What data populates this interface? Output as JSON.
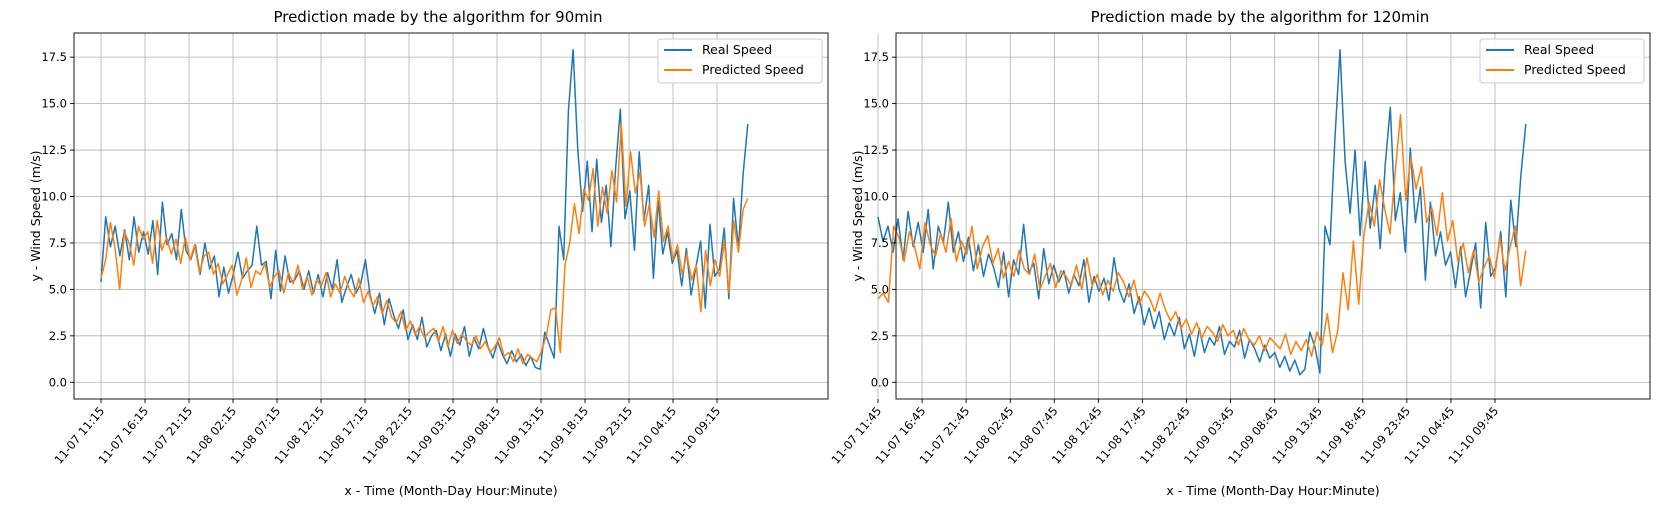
{
  "colors": {
    "real": "#1f77b4",
    "predicted": "#ff7f0e"
  },
  "chart_data": [
    {
      "type": "line",
      "title": "Prediction made by the algorithm for 90min",
      "xlabel": "x - Time (Month-Day Hour:Minute)",
      "ylabel": "y - Wind Speed (m/s)",
      "ylim": [
        -0.9,
        18.8
      ],
      "yticks": [
        "0.0",
        "2.5",
        "5.0",
        "7.5",
        "10.0",
        "12.5",
        "15.0",
        "17.5"
      ],
      "xticklabels": [
        "11-07 11:15",
        "11-07 16:15",
        "11-07 21:15",
        "11-08 02:15",
        "11-08 07:15",
        "11-08 12:15",
        "11-08 17:15",
        "11-08 22:15",
        "11-09 03:15",
        "11-09 08:15",
        "11-09 13:15",
        "11-09 18:15",
        "11-09 23:15",
        "11-10 04:15",
        "11-10 09:15"
      ],
      "legend": [
        "Real Speed",
        "Predicted Speed"
      ],
      "legend_loc": "upper right",
      "series": [
        {
          "name": "Real Speed",
          "values": [
            5.4,
            8.9,
            7.3,
            8.4,
            6.8,
            8.2,
            6.6,
            8.9,
            7.0,
            8.1,
            6.9,
            8.7,
            5.8,
            9.7,
            7.4,
            8.0,
            6.6,
            9.3,
            7.1,
            6.6,
            7.4,
            5.8,
            7.5,
            6.1,
            6.8,
            4.6,
            6.2,
            4.8,
            5.8,
            7.0,
            5.6,
            6.0,
            6.3,
            8.4,
            6.3,
            6.5,
            4.5,
            7.1,
            4.9,
            6.8,
            5.4,
            5.5,
            6.0,
            5.0,
            6.0,
            4.8,
            5.8,
            4.6,
            5.9,
            5.0,
            6.6,
            4.3,
            5.1,
            5.8,
            4.8,
            5.3,
            6.6,
            4.7,
            3.7,
            4.8,
            3.1,
            4.5,
            3.6,
            2.9,
            3.9,
            2.3,
            3.1,
            2.3,
            3.5,
            1.9,
            2.5,
            2.8,
            1.7,
            2.6,
            1.4,
            2.6,
            2.0,
            3.0,
            1.4,
            2.4,
            1.8,
            2.9,
            1.9,
            1.3,
            2.2,
            1.5,
            1.0,
            1.7,
            1.1,
            1.5,
            0.9,
            1.4,
            0.8,
            0.7,
            2.7,
            2.0,
            1.3,
            8.4,
            6.6,
            14.6,
            17.9,
            12.5,
            9.2,
            11.9,
            8.1,
            12.0,
            8.6,
            10.6,
            7.3,
            11.5,
            14.7,
            8.8,
            10.3,
            7.1,
            12.4,
            8.7,
            10.6,
            5.6,
            9.8,
            6.9,
            8.1,
            6.4,
            7.1,
            5.2,
            7.2,
            4.7,
            6.2,
            7.6,
            4.0,
            8.5,
            5.7,
            6.1,
            8.3,
            4.5,
            9.9,
            7.2,
            11.2,
            13.9
          ]
        },
        {
          "name": "Predicted Speed",
          "values": [
            5.6,
            6.6,
            8.6,
            7.2,
            5.0,
            8.1,
            7.5,
            6.3,
            8.4,
            7.7,
            8.1,
            6.4,
            8.7,
            7.1,
            7.8,
            6.9,
            7.7,
            6.4,
            7.8,
            6.6,
            7.4,
            5.9,
            6.8,
            7.0,
            5.8,
            6.4,
            5.3,
            5.8,
            6.3,
            4.7,
            5.5,
            6.7,
            5.1,
            6.0,
            5.8,
            6.4,
            5.1,
            5.7,
            6.0,
            4.8,
            5.9,
            5.3,
            6.3,
            5.0,
            5.7,
            4.7,
            5.5,
            5.2,
            5.9,
            4.6,
            5.3,
            4.8,
            5.7,
            5.0,
            4.6,
            5.6,
            4.3,
            4.9,
            4.1,
            4.6,
            3.7,
            4.4,
            3.5,
            3.2,
            3.8,
            2.8,
            3.3,
            2.6,
            3.0,
            2.4,
            2.7,
            2.9,
            2.2,
            3.0,
            1.9,
            2.8,
            2.1,
            2.6,
            2.2,
            2.0,
            2.5,
            1.8,
            2.2,
            1.6,
            1.9,
            2.4,
            1.4,
            1.6,
            1.1,
            1.8,
            1.0,
            1.5,
            1.3,
            1.1,
            1.7,
            2.5,
            3.9,
            4.0,
            1.6,
            6.3,
            7.5,
            9.6,
            8.0,
            10.4,
            9.8,
            11.5,
            8.4,
            10.5,
            9.1,
            11.4,
            9.7,
            13.9,
            9.5,
            12.4,
            10.2,
            11.3,
            8.4,
            9.6,
            7.8,
            10.3,
            7.6,
            8.4,
            6.6,
            7.4,
            5.8,
            6.9,
            5.5,
            6.3,
            3.8,
            7.1,
            5.2,
            6.6,
            5.7,
            7.6,
            4.8,
            8.7,
            7.0,
            9.3,
            9.9
          ]
        }
      ]
    },
    {
      "type": "line",
      "title": "Prediction made by the algorithm for 120min",
      "xlabel": "x - Time (Month-Day Hour:Minute)",
      "ylabel": "y - Wind Speed (m/s)",
      "ylim": [
        -0.9,
        18.8
      ],
      "yticks": [
        "0.0",
        "2.5",
        "5.0",
        "7.5",
        "10.0",
        "12.5",
        "15.0",
        "17.5"
      ],
      "xticklabels": [
        "11-07 11:45",
        "11-07 16:45",
        "11-07 21:45",
        "11-08 02:45",
        "11-08 07:45",
        "11-08 12:45",
        "11-08 17:45",
        "11-08 22:45",
        "11-09 03:45",
        "11-09 08:45",
        "11-09 13:45",
        "11-09 18:45",
        "11-09 23:45",
        "11-10 04:45",
        "11-10 09:45"
      ],
      "legend": [
        "Real Speed",
        "Predicted Speed"
      ],
      "legend_loc": "upper right",
      "series": [
        {
          "name": "Real Speed",
          "values": [
            8.9,
            7.6,
            8.4,
            7.0,
            8.8,
            6.6,
            9.2,
            7.3,
            8.6,
            7.0,
            9.3,
            6.1,
            8.4,
            7.5,
            9.7,
            7.0,
            8.1,
            6.5,
            7.8,
            6.0,
            7.4,
            5.7,
            6.9,
            6.2,
            5.1,
            7.0,
            4.6,
            6.6,
            5.8,
            8.5,
            5.9,
            6.4,
            4.5,
            7.2,
            5.3,
            6.3,
            5.4,
            6.0,
            4.8,
            5.8,
            5.2,
            6.6,
            4.3,
            5.7,
            4.9,
            5.6,
            4.4,
            6.7,
            5.0,
            4.3,
            5.3,
            3.7,
            4.6,
            3.1,
            4.0,
            2.9,
            3.8,
            2.3,
            3.2,
            2.5,
            3.5,
            1.8,
            2.6,
            1.4,
            2.9,
            1.6,
            2.4,
            2.0,
            3.0,
            1.5,
            2.2,
            1.9,
            2.8,
            1.3,
            2.3,
            1.8,
            1.1,
            2.0,
            1.3,
            1.6,
            0.8,
            1.4,
            0.6,
            1.2,
            0.4,
            0.7,
            2.7,
            1.9,
            0.5,
            8.4,
            7.4,
            13.2,
            17.9,
            11.9,
            9.1,
            12.5,
            7.9,
            11.9,
            8.3,
            10.6,
            7.2,
            11.7,
            14.8,
            8.7,
            10.2,
            7.0,
            12.6,
            8.6,
            10.5,
            5.5,
            9.7,
            6.8,
            8.1,
            6.3,
            7.0,
            5.1,
            7.3,
            4.6,
            6.0,
            7.5,
            4.0,
            8.6,
            5.7,
            6.2,
            8.1,
            4.6,
            9.8,
            7.3,
            11.1,
            13.9
          ]
        },
        {
          "name": "Predicted Speed",
          "values": [
            4.5,
            4.8,
            4.3,
            8.4,
            7.8,
            6.5,
            8.1,
            7.3,
            6.1,
            8.6,
            7.4,
            6.8,
            8.0,
            7.0,
            8.8,
            6.5,
            7.6,
            6.9,
            8.4,
            6.1,
            7.3,
            7.9,
            6.4,
            7.2,
            5.6,
            6.5,
            5.7,
            7.1,
            6.1,
            5.8,
            6.9,
            5.0,
            5.7,
            6.4,
            5.1,
            6.0,
            5.7,
            5.2,
            6.3,
            5.0,
            6.7,
            5.2,
            5.8,
            4.7,
            5.5,
            4.9,
            5.9,
            5.4,
            4.6,
            5.5,
            4.2,
            4.9,
            4.5,
            3.8,
            4.8,
            3.9,
            3.3,
            3.8,
            2.9,
            3.4,
            2.6,
            3.2,
            2.4,
            3.0,
            2.7,
            2.2,
            3.1,
            2.5,
            2.8,
            2.0,
            2.9,
            2.3,
            2.0,
            2.5,
            1.7,
            2.4,
            2.1,
            1.8,
            2.6,
            1.5,
            2.2,
            1.7,
            2.3,
            1.4,
            2.7,
            2.0,
            3.7,
            1.6,
            2.8,
            5.9,
            3.9,
            7.6,
            4.2,
            7.9,
            9.7,
            8.4,
            10.9,
            9.3,
            8.0,
            11.3,
            14.4,
            9.8,
            12.1,
            10.4,
            11.6,
            8.6,
            9.4,
            7.9,
            10.2,
            7.6,
            8.7,
            6.5,
            7.5,
            5.9,
            7.1,
            5.4,
            6.2,
            6.8,
            5.6,
            7.8,
            6.0,
            7.3,
            8.4,
            5.2,
            7.1
          ]
        }
      ]
    }
  ]
}
